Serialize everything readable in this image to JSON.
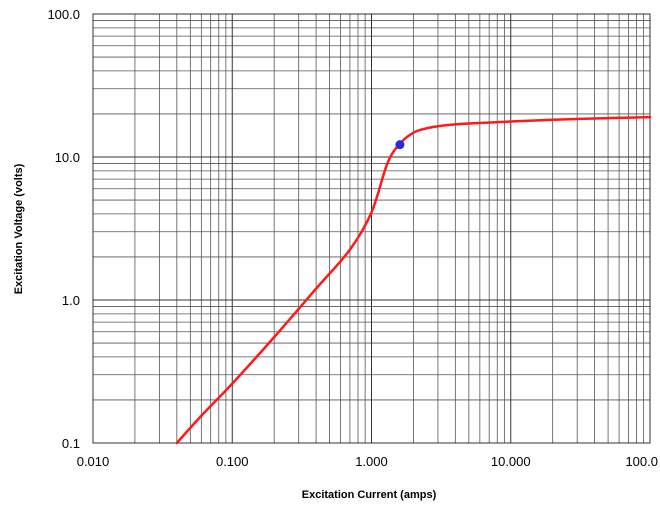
{
  "chart_data": {
    "type": "line",
    "title": "",
    "xlabel": "Excitation Current (amps)",
    "ylabel": "Excitation Voltage (volts)",
    "x_scale": "log",
    "y_scale": "log",
    "xlim": [
      0.01,
      100
    ],
    "ylim": [
      0.1,
      100
    ],
    "x_tick_labels": [
      "0.010",
      "0.100",
      "1.000",
      "10.000",
      "100.0"
    ],
    "y_tick_labels": [
      "0.1",
      "1.0",
      "10.0",
      "100.0"
    ],
    "grid": true,
    "grid_minor": true,
    "series": [
      {
        "color": "#ff1a1a",
        "x": [
          0.04,
          0.06,
          0.1,
          0.2,
          0.4,
          0.7,
          1.0,
          1.3,
          1.6,
          2.0,
          2.5,
          3.0,
          4.0,
          6.0,
          10.0,
          20.0,
          50.0,
          100.0
        ],
        "y": [
          0.1,
          0.155,
          0.26,
          0.55,
          1.2,
          2.25,
          4.1,
          9.0,
          12.4,
          14.8,
          15.9,
          16.4,
          16.9,
          17.3,
          17.7,
          18.2,
          18.7,
          19.0
        ]
      }
    ],
    "points": [
      {
        "x": 1.6,
        "y": 12.2,
        "color": "#2b2bdc"
      }
    ]
  }
}
